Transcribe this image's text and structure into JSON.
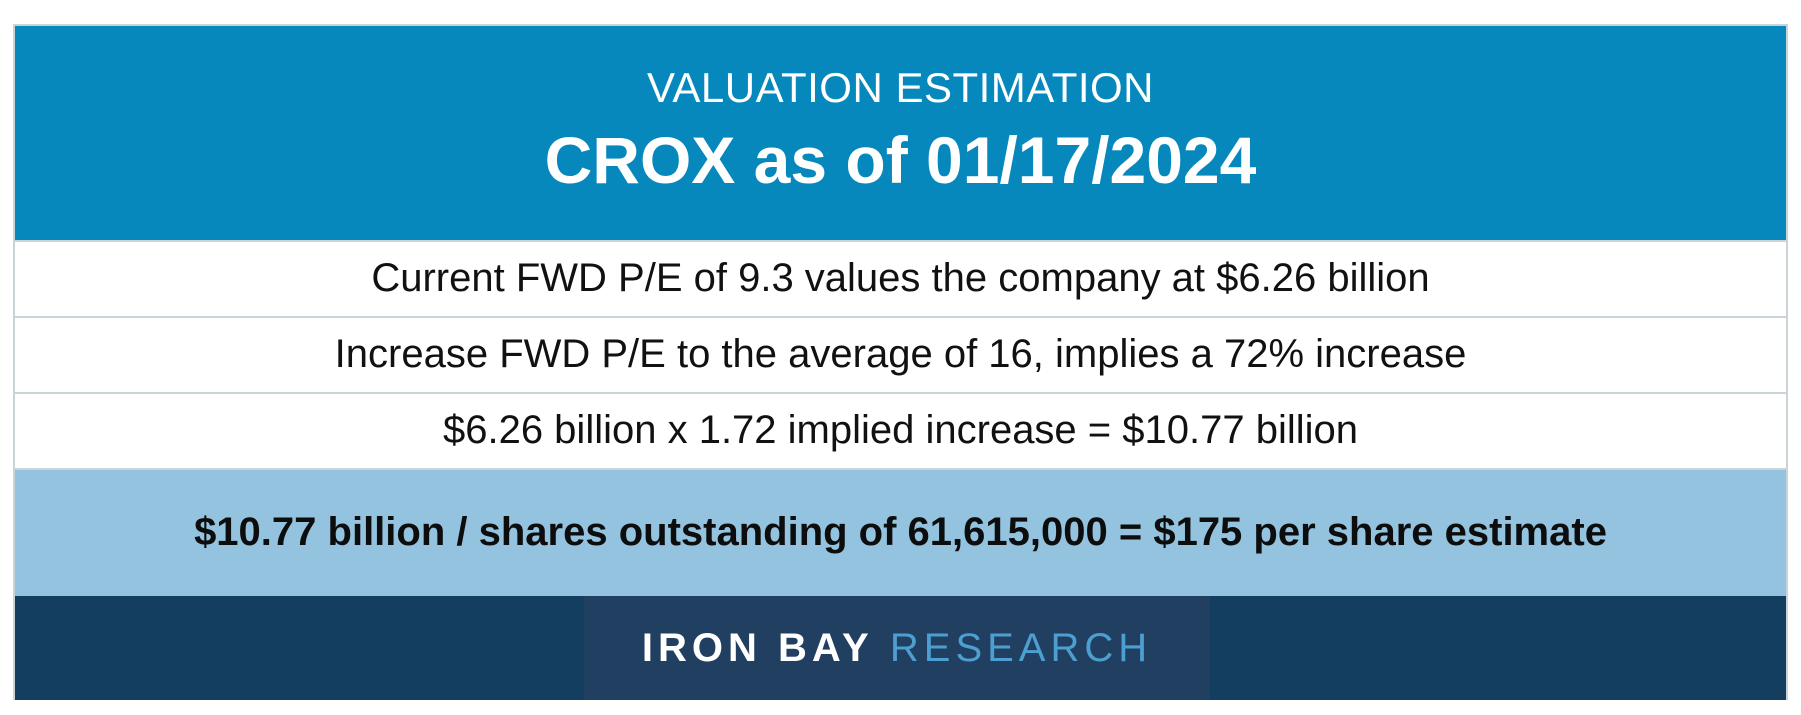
{
  "header": {
    "kicker": "VALUATION ESTIMATION",
    "title": "CROX as of 01/17/2024"
  },
  "rows": [
    "Current FWD P/E of 9.3 values the company at $6.26 billion",
    "Increase FWD P/E to the average of 16, implies a 72% increase",
    "$6.26 billion x 1.72 implied increase = $10.77 billion"
  ],
  "summary": "$10.77 billion / shares outstanding of 61,615,000 = $175 per share estimate",
  "footer": {
    "logo_primary": "IRON BAY",
    "logo_secondary": "RESEARCH"
  },
  "colors": {
    "header_bg": "#0788bd",
    "summary_bg": "#93c3de",
    "footer_bg": "#143e5f",
    "logo_accent": "#4c9fd0"
  }
}
